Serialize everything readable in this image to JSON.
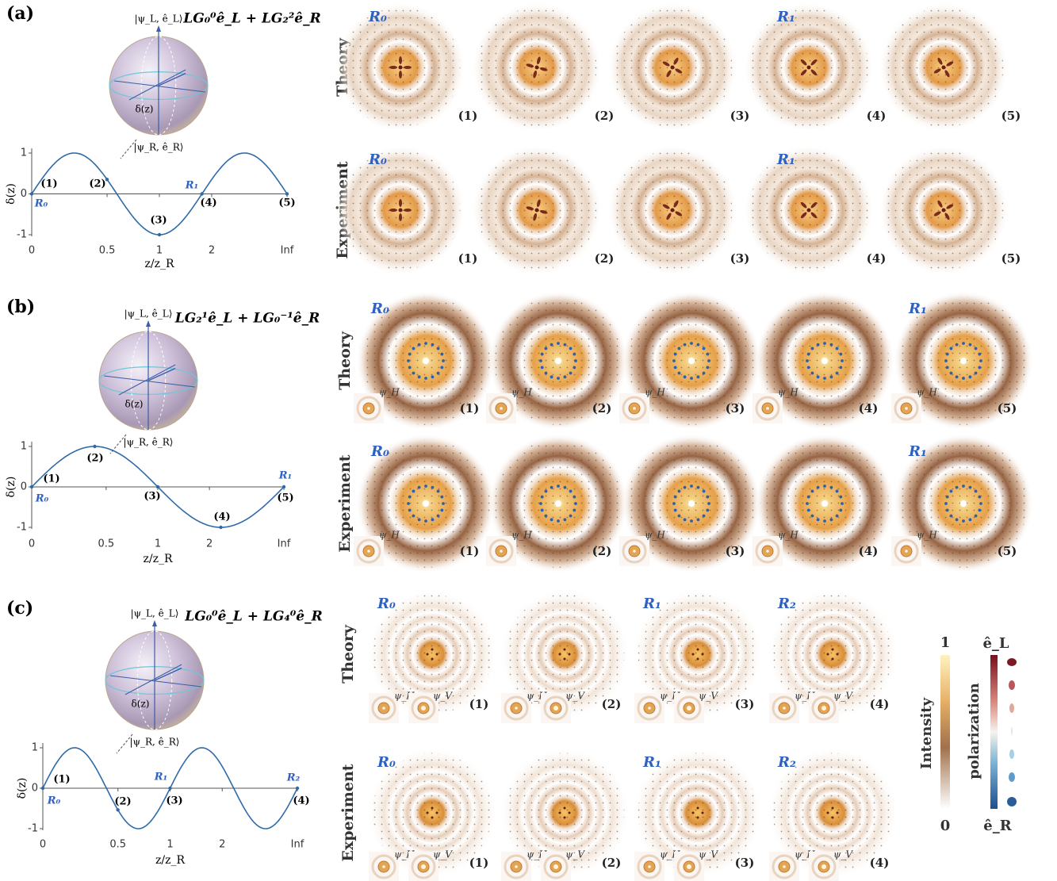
{
  "panels": [
    {
      "label": "(a)",
      "formula": "LG₀⁰ê_L + LG₂²ê_R",
      "sphere": {
        "top": "|ψ_L, ê_L⟩",
        "bottom": "|ψ_R, ê_R⟩",
        "angle": "δ(z)"
      },
      "plot": {
        "ylabel": "δ(z)",
        "xlabel": "z/z_R",
        "yticks": [
          1,
          0,
          -1
        ],
        "xticks": [
          0,
          0.5,
          1,
          2,
          {
            "value": "Infinity",
            "label": "Inf"
          }
        ],
        "point_labels": [
          "(1)",
          "(2)",
          "(3)",
          "(4)",
          "(5)"
        ],
        "markers": [
          "R₀",
          "R₁"
        ]
      },
      "insets": [],
      "rows": [
        {
          "label": "Theory",
          "cells": [
            {
              "index": "(1)",
              "tag": "R₀"
            },
            {
              "index": "(2)"
            },
            {
              "index": "(3)"
            },
            {
              "index": "(4)",
              "tag": "R₁"
            },
            {
              "index": "(5)"
            }
          ]
        },
        {
          "label": "Experiment",
          "cells": [
            {
              "index": "(1)",
              "tag": "R₀"
            },
            {
              "index": "(2)"
            },
            {
              "index": "(3)"
            },
            {
              "index": "(4)",
              "tag": "R₁"
            },
            {
              "index": "(5)"
            }
          ]
        }
      ]
    },
    {
      "label": "(b)",
      "formula": "LG₂¹ê_L + LG₀⁻¹ê_R",
      "sphere": {
        "top": "|ψ_L, ê_L⟩",
        "bottom": "|ψ_R, ê_R⟩",
        "angle": "δ(z)"
      },
      "plot": {
        "ylabel": "δ(z)",
        "xlabel": "z/z_R",
        "yticks": [
          1,
          0,
          -1
        ],
        "xticks": [
          0,
          0.5,
          1,
          2,
          {
            "value": "Infinity",
            "label": "Inf"
          }
        ],
        "point_labels": [
          "(1)",
          "(2)",
          "(3)",
          "(4)",
          "(5)"
        ],
        "markers": [
          "R₀",
          "R₁"
        ]
      },
      "insets": [
        "ψ_H"
      ],
      "rows": [
        {
          "label": "Theory",
          "cells": [
            {
              "index": "(1)",
              "tag": "R₀"
            },
            {
              "index": "(2)"
            },
            {
              "index": "(3)"
            },
            {
              "index": "(4)"
            },
            {
              "index": "(5)",
              "tag": "R₁"
            }
          ]
        },
        {
          "label": "Experiment",
          "cells": [
            {
              "index": "(1)",
              "tag": "R₀"
            },
            {
              "index": "(2)"
            },
            {
              "index": "(3)"
            },
            {
              "index": "(4)"
            },
            {
              "index": "(5)",
              "tag": "R₁"
            }
          ]
        }
      ]
    },
    {
      "label": "(c)",
      "formula": "LG₀⁰ê_L + LG₄⁰ê_R",
      "sphere": {
        "top": "|ψ_L, ê_L⟩",
        "bottom": "|ψ_R, ê_R⟩",
        "angle": "δ(z)"
      },
      "plot": {
        "ylabel": "δ(z)",
        "xlabel": "z/z_R",
        "yticks": [
          1,
          0,
          -1
        ],
        "xticks": [
          0,
          0.5,
          1,
          2,
          {
            "value": "Infinity",
            "label": "Inf"
          }
        ],
        "point_labels": [
          "(1)",
          "(2)",
          "(3)",
          "(4)"
        ],
        "markers": [
          "R₀",
          "R₁",
          "R₂"
        ]
      },
      "insets": [
        "ψ_H",
        "ψ_V"
      ],
      "rows": [
        {
          "label": "Theory",
          "cells": [
            {
              "index": "(1)",
              "tag": "R₀"
            },
            {
              "index": "(2)"
            },
            {
              "index": "(3)",
              "tag": "R₁"
            },
            {
              "index": "(4)",
              "tag": "R₂"
            }
          ]
        },
        {
          "label": "Experiment",
          "cells": [
            {
              "index": "(1)",
              "tag": "R₀"
            },
            {
              "index": "(2)"
            },
            {
              "index": "(3)",
              "tag": "R₁"
            },
            {
              "index": "(4)",
              "tag": "R₂"
            }
          ]
        }
      ]
    }
  ],
  "colorbars": {
    "intensity": {
      "label": "Intensity",
      "max": 1,
      "min": 0
    },
    "polarization": {
      "label": "polarization",
      "top": "ê_L",
      "bottom": "ê_R"
    }
  }
}
